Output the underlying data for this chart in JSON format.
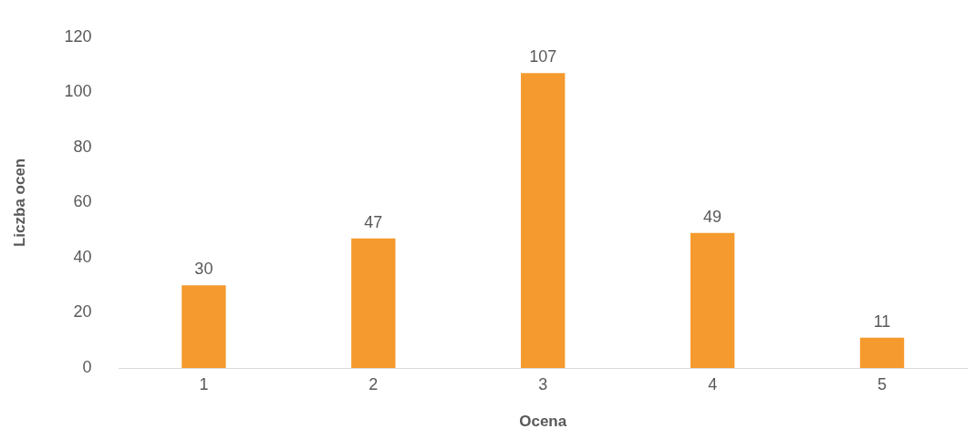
{
  "chart_data": {
    "type": "bar",
    "xlabel": "Ocena",
    "ylabel": "Liczba ocen",
    "categories": [
      "1",
      "2",
      "3",
      "4",
      "5"
    ],
    "values": [
      30,
      47,
      107,
      49,
      11
    ],
    "color": "#f59a2e",
    "ylim": [
      0,
      120
    ],
    "yticks": [
      0,
      20,
      40,
      60,
      80,
      100,
      120
    ],
    "grid": false,
    "legend": false,
    "data_labels": true
  }
}
